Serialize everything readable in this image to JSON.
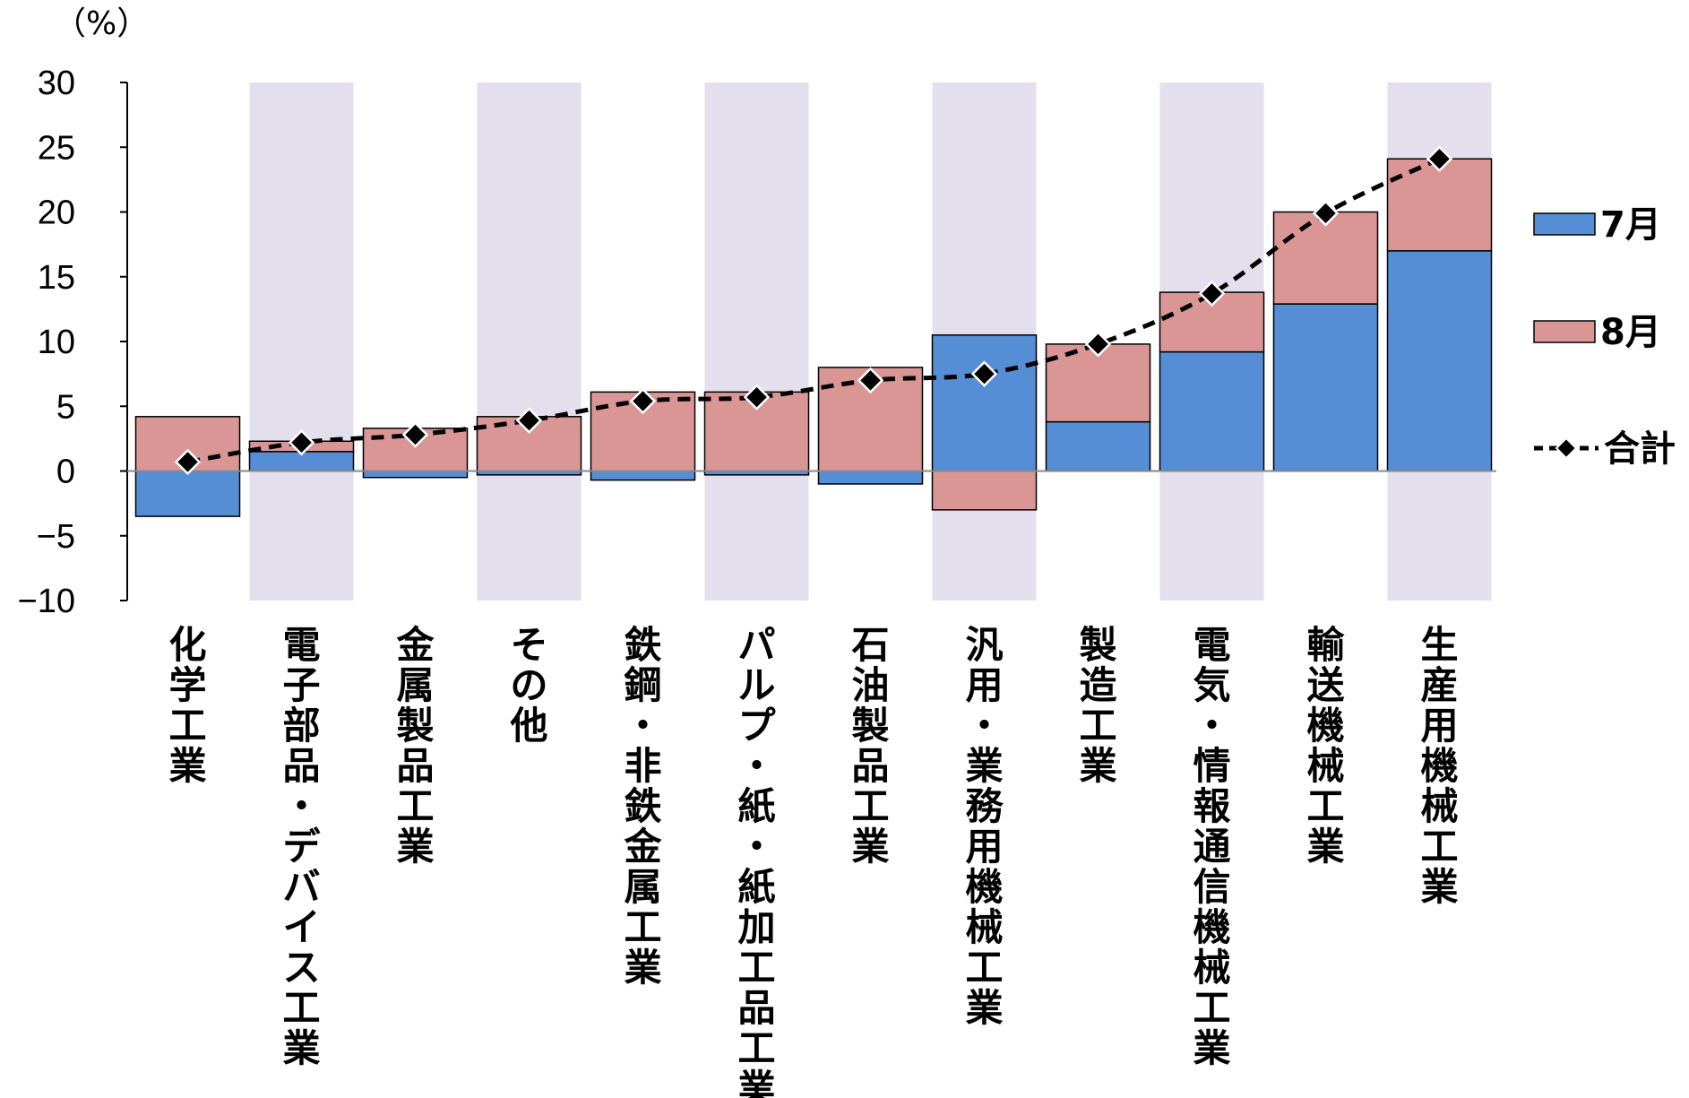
{
  "chart_data": {
    "type": "bar",
    "stacked": true,
    "unit_label": "（%）",
    "ylim": [
      -10,
      30
    ],
    "y_ticks": [
      30,
      25,
      20,
      15,
      10,
      5,
      0,
      -5,
      -10
    ],
    "y_tick_labels": [
      "30",
      "25",
      "20",
      "15",
      "10",
      "5",
      "0",
      "−5",
      "−10"
    ],
    "categories": [
      "化学工業",
      "電子部品・デバイス工業",
      "金属製品工業",
      "その他",
      "鉄鋼・非鉄金属工業",
      "パルプ・紙・紙加工品工業",
      "石油製品工業",
      "汎用・業務用機械工業",
      "製造工業",
      "電気・情報通信機械工業",
      "輸送機械工業",
      "生産用機械工業"
    ],
    "shaded_categories": [
      1,
      3,
      5,
      7,
      9,
      11
    ],
    "series": [
      {
        "name": "7月",
        "kind": "bar",
        "color": "#558ed5",
        "values": [
          -3.5,
          1.5,
          -0.5,
          -0.3,
          -0.7,
          -0.3,
          -1.0,
          10.5,
          3.8,
          9.2,
          12.9,
          17.0
        ]
      },
      {
        "name": "8月",
        "kind": "bar",
        "color": "#d99694",
        "values": [
          4.2,
          0.8,
          3.3,
          4.2,
          6.1,
          6.1,
          8.0,
          -3.0,
          6.0,
          4.6,
          7.1,
          7.1
        ]
      },
      {
        "name": "合計",
        "kind": "line",
        "color": "#000000",
        "values": [
          0.7,
          2.2,
          2.8,
          3.9,
          5.4,
          5.7,
          7.0,
          7.5,
          9.8,
          13.7,
          19.9,
          24.1
        ]
      }
    ],
    "legend_position": "right",
    "shade_color": "#e4dfec"
  }
}
